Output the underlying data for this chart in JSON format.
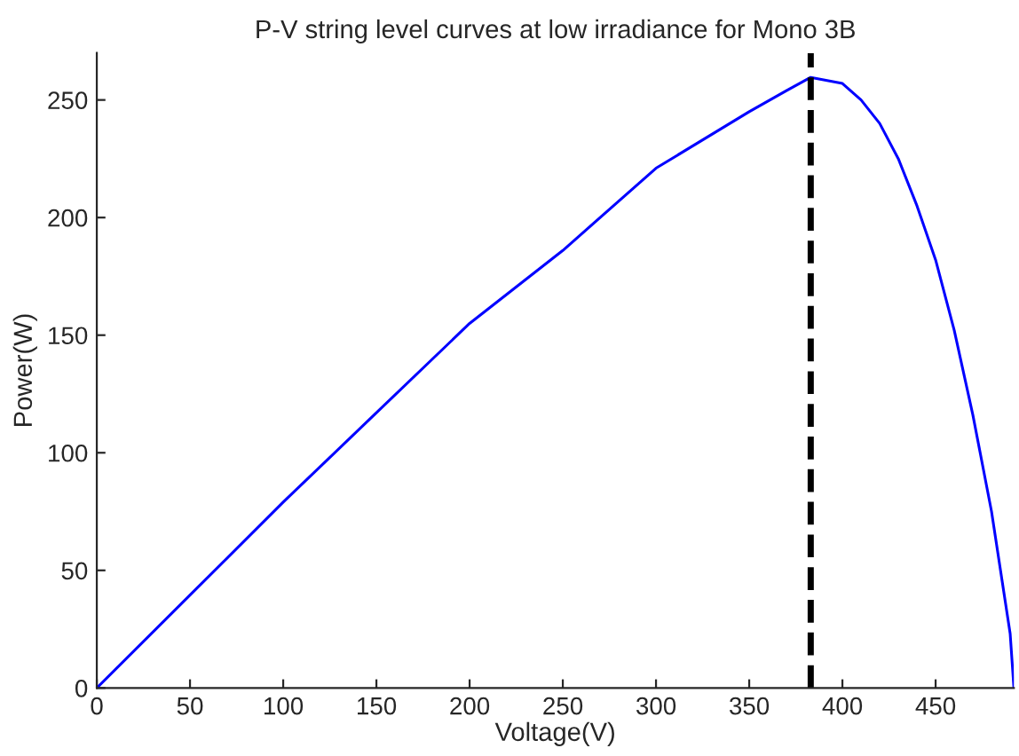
{
  "chart_data": {
    "type": "line",
    "title": "P-V string level curves at low irradiance for Mono 3B",
    "xlabel": "Voltage(V)",
    "ylabel": "Power(W)",
    "x": [
      0,
      50,
      100,
      150,
      200,
      250,
      300,
      350,
      370,
      383,
      400,
      410,
      420,
      430,
      440,
      450,
      460,
      470,
      480,
      490,
      492
    ],
    "series": [
      {
        "color": "#0000ff",
        "values": [
          0,
          39.5,
          79,
          117,
          155,
          186,
          221,
          245,
          254,
          259.6,
          257,
          250,
          240,
          225,
          205,
          182,
          152,
          116,
          75,
          23,
          0
        ]
      }
    ],
    "xlim": [
      0,
      492
    ],
    "ylim": [
      0,
      270
    ],
    "xticks": [
      0,
      50,
      100,
      150,
      200,
      250,
      300,
      350,
      400,
      450
    ],
    "yticks": [
      0,
      50,
      100,
      150,
      200,
      250
    ],
    "ref_lines": [
      {
        "axis": "x",
        "value": 383,
        "color": "#000000",
        "line_style": "dashed"
      }
    ],
    "grid": false,
    "legend": false,
    "line_style": "solid",
    "marker": "none"
  }
}
